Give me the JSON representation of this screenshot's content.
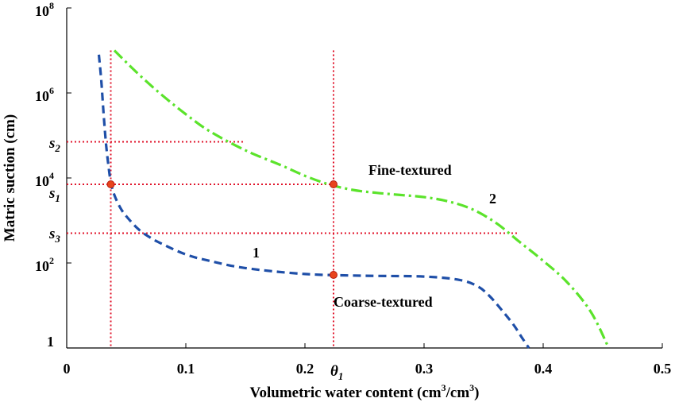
{
  "chart_data": {
    "type": "line",
    "title": "",
    "xlabel": "Volumetric water content (cm",
    "xlabel_sup1": "3",
    "xlabel_mid": "/cm",
    "xlabel_sup2": "3",
    "xlabel_end": ")",
    "ylabel": "Matric suction (cm)",
    "xlim": [
      0,
      0.5
    ],
    "ylim_log10": [
      0,
      8
    ],
    "yscale": "log",
    "grid": false,
    "legend": "none",
    "x_ticks": [
      {
        "value": 0,
        "label": "0"
      },
      {
        "value": 0.1,
        "label": "0.1"
      },
      {
        "value": 0.2,
        "label": "0.2"
      },
      {
        "value": 0.3,
        "label": "0.3"
      },
      {
        "value": 0.4,
        "label": "0.4"
      },
      {
        "value": 0.5,
        "label": "0.5"
      }
    ],
    "y_ticks": [
      {
        "log10": 0,
        "base": "1",
        "exp": ""
      },
      {
        "log10": 2,
        "base": "10",
        "exp": "2"
      },
      {
        "log10": 4,
        "base": "10",
        "exp": "4"
      },
      {
        "log10": 6,
        "base": "10",
        "exp": "6"
      },
      {
        "log10": 8,
        "base": "10",
        "exp": "8"
      }
    ],
    "series": [
      {
        "name": "1",
        "color": "#1f4fa8",
        "dash": "dashed",
        "x": [
          0.027,
          0.029,
          0.031,
          0.033,
          0.035,
          0.037,
          0.04,
          0.045,
          0.05,
          0.06,
          0.07,
          0.08,
          0.1,
          0.12,
          0.15,
          0.2,
          0.25,
          0.3,
          0.33,
          0.345,
          0.355,
          0.365,
          0.375,
          0.382,
          0.388
        ],
        "log10": [
          6.9,
          6.3,
          5.5,
          4.8,
          4.3,
          3.9,
          3.6,
          3.3,
          3.1,
          2.8,
          2.6,
          2.45,
          2.2,
          2.05,
          1.88,
          1.74,
          1.7,
          1.68,
          1.6,
          1.45,
          1.22,
          0.9,
          0.55,
          0.25,
          0.0
        ]
      },
      {
        "name": "2",
        "color": "#5be32b",
        "dash": "dash-dot",
        "x": [
          0.04,
          0.06,
          0.08,
          0.1,
          0.12,
          0.15,
          0.18,
          0.2,
          0.22,
          0.24,
          0.26,
          0.28,
          0.3,
          0.32,
          0.34,
          0.36,
          0.38,
          0.4,
          0.42,
          0.44,
          0.455
        ],
        "log10": [
          7.0,
          6.45,
          5.95,
          5.5,
          5.1,
          4.65,
          4.3,
          4.05,
          3.85,
          3.72,
          3.65,
          3.6,
          3.55,
          3.45,
          3.27,
          2.95,
          2.5,
          2.05,
          1.55,
          0.85,
          0.0
        ]
      }
    ],
    "reference_lines": {
      "color": "#e0132a",
      "vertical_x": [
        0.037,
        0.224
      ],
      "horizontal": [
        {
          "log10": 4.85,
          "x_end": 0.148
        },
        {
          "log10": 3.85,
          "x_end": 0.224
        },
        {
          "log10": 2.7,
          "x_end": 0.38
        }
      ]
    },
    "markers": [
      {
        "x": 0.037,
        "log10": 3.85
      },
      {
        "x": 0.224,
        "log10": 3.85
      },
      {
        "x": 0.224,
        "log10": 1.72
      }
    ],
    "annotations": {
      "fine": "Fine-textured",
      "coarse": "Coarse-textured",
      "curve1": "1",
      "curve2": "2",
      "s1": "s",
      "s1_sub": "1",
      "s2": "s",
      "s2_sub": "2",
      "s3": "s",
      "s3_sub": "3",
      "theta": "θ",
      "theta_sub": "1"
    }
  }
}
